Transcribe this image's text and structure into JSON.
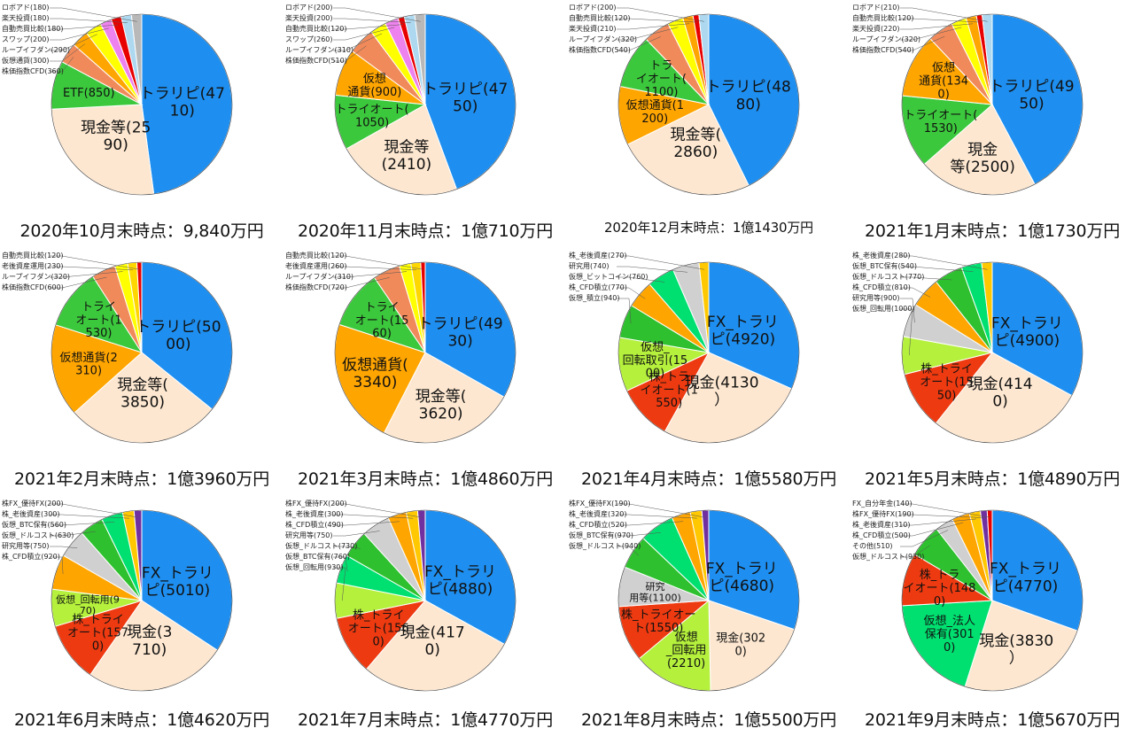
{
  "chart_data": [
    {
      "type": "pie",
      "title": "2020年10月末時点：9,840万円",
      "slices": [
        {
          "name": "トラリピ",
          "value": 4710,
          "color": "#1e8ff0",
          "label_lines": [
            "トラリピ(47",
            "10)"
          ]
        },
        {
          "name": "現金等",
          "value": 2590,
          "color": "#fde7d0",
          "label_lines": [
            "現金等(25",
            "90)"
          ]
        },
        {
          "name": "ETF",
          "value": 850,
          "color": "#3cc83c",
          "label_lines": [
            "ETF(850)"
          ]
        },
        {
          "name": "株価指数CFD",
          "value": 360,
          "color": "#f08a5a",
          "label": "株価指数CFD(360)"
        },
        {
          "name": "仮想通貨",
          "value": 300,
          "color": "#ffa500",
          "label": "仮想通貨(300)"
        },
        {
          "name": "ループイフダン",
          "value": 290,
          "color": "#ffff00",
          "label": "ループイフダン(290)"
        },
        {
          "name": "スワップ",
          "value": 200,
          "color": "#ee82ee",
          "label": "スワップ(200)"
        },
        {
          "name": "自動売買比較",
          "value": 180,
          "color": "#e80000",
          "label": "自動売買比較(180)"
        },
        {
          "name": "楽天投資",
          "value": 180,
          "color": "#add8f0",
          "label": "楽天投資(180)"
        },
        {
          "name": "ロボアド",
          "value": 180,
          "color": "#b8b8b8",
          "label": "ロボアド(180)"
        }
      ]
    },
    {
      "type": "pie",
      "title": "2020年11月末時点：1億710万円",
      "slices": [
        {
          "name": "トラリピ",
          "value": 4750,
          "color": "#1e8ff0",
          "label_lines": [
            "トラリピ(47",
            "50)"
          ]
        },
        {
          "name": "現金等",
          "value": 2410,
          "color": "#fde7d0",
          "label_lines": [
            "現金等",
            "(2410)"
          ]
        },
        {
          "name": "トライオート",
          "value": 1050,
          "color": "#3cc83c",
          "label_lines": [
            "トライオート(",
            "1050)"
          ]
        },
        {
          "name": "仮想通貨",
          "value": 900,
          "color": "#ffa500",
          "label_lines": [
            "仮想",
            "通貨(900)"
          ]
        },
        {
          "name": "株価指数CFD",
          "value": 510,
          "color": "#f08a5a",
          "label": "株価指数CFD(510)"
        },
        {
          "name": "ループイフダン",
          "value": 310,
          "color": "#ffff00",
          "label": "ループイフダン(310)"
        },
        {
          "name": "スワップ",
          "value": 260,
          "color": "#ee82ee",
          "label": "スワップ(260)"
        },
        {
          "name": "自動売買比較",
          "value": 120,
          "color": "#e80000",
          "label": "自動売買比較(120)"
        },
        {
          "name": "楽天投資",
          "value": 200,
          "color": "#add8f0",
          "label": "楽天投資(200)"
        },
        {
          "name": "ロボアド",
          "value": 200,
          "color": "#b8b8b8",
          "label": "ロボアド(200)"
        }
      ]
    },
    {
      "type": "pie",
      "title": "2020年12月末時点：1億1430万円",
      "small_title": true,
      "slices": [
        {
          "name": "トラリピ",
          "value": 4880,
          "color": "#1e8ff0",
          "label_lines": [
            "トラリピ(48",
            "80)"
          ]
        },
        {
          "name": "現金等",
          "value": 2860,
          "color": "#fde7d0",
          "label_lines": [
            "現金等(",
            "2860)"
          ]
        },
        {
          "name": "仮想通貨",
          "value": 1200,
          "color": "#ffa500",
          "label_lines": [
            "仮想通貨(1",
            "200)"
          ]
        },
        {
          "name": "トライオート",
          "value": 1100,
          "color": "#3cc83c",
          "label_lines": [
            "トラ",
            "イオート(",
            "1100)"
          ]
        },
        {
          "name": "株価指数CFD",
          "value": 540,
          "color": "#f08a5a",
          "label": "株価指数CFD(540)"
        },
        {
          "name": "ループイフダン",
          "value": 320,
          "color": "#ffff00",
          "label": "ループイフダン(320)"
        },
        {
          "name": "楽天投資",
          "value": 210,
          "color": "#ffa500",
          "label": "楽天投資(210)"
        },
        {
          "name": "自動売買比較",
          "value": 120,
          "color": "#e80000",
          "label": "自動売買比較(120)"
        },
        {
          "name": "ロボアド",
          "value": 200,
          "color": "#add8f0",
          "label": "ロボアド(200)"
        }
      ]
    },
    {
      "type": "pie",
      "title": "2021年1月末時点：1億1730万円",
      "slices": [
        {
          "name": "トラリピ",
          "value": 4950,
          "color": "#1e8ff0",
          "label_lines": [
            "トラリピ(49",
            "50)"
          ]
        },
        {
          "name": "現金等",
          "value": 2500,
          "color": "#fde7d0",
          "label_lines": [
            "現金",
            "等(2500)"
          ]
        },
        {
          "name": "トライオート",
          "value": 1530,
          "color": "#3cc83c",
          "label_lines": [
            "トライオート(",
            "1530)"
          ]
        },
        {
          "name": "仮想通貨",
          "value": 1340,
          "color": "#ffa500",
          "label_lines": [
            "仮想",
            "通貨(134",
            "0)"
          ]
        },
        {
          "name": "株価指数CFD",
          "value": 540,
          "color": "#f08a5a",
          "label": "株価指数CFD(540)"
        },
        {
          "name": "ループイフダン",
          "value": 320,
          "color": "#ffff00",
          "label": "ループイフダン(320)"
        },
        {
          "name": "楽天投資",
          "value": 220,
          "color": "#ffa500",
          "label": "楽天投資(220)"
        },
        {
          "name": "自動売買比較",
          "value": 120,
          "color": "#e80000",
          "label": "自動売買比較(120)"
        },
        {
          "name": "ロボアド",
          "value": 210,
          "color": "#add8f0",
          "label": "ロボアド(210)"
        }
      ]
    },
    {
      "type": "pie",
      "title": "2021年2月末時点：1億3960万円",
      "slices": [
        {
          "name": "トラリピ",
          "value": 5000,
          "color": "#1e8ff0",
          "label_lines": [
            "トラリピ(50",
            "00)"
          ]
        },
        {
          "name": "現金等",
          "value": 3850,
          "color": "#fde7d0",
          "label_lines": [
            "現金等(",
            "3850)"
          ]
        },
        {
          "name": "仮想通貨",
          "value": 2310,
          "color": "#ffa500",
          "label_lines": [
            "仮想通貨(2",
            "310)"
          ]
        },
        {
          "name": "トライオート",
          "value": 1530,
          "color": "#3cc83c",
          "label_lines": [
            "トライ",
            "オート(1",
            "530)"
          ]
        },
        {
          "name": "株価指数CFD",
          "value": 600,
          "color": "#f08a5a",
          "label": "株価指数CFD(600)"
        },
        {
          "name": "ループイフダン",
          "value": 320,
          "color": "#ffff00",
          "label": "ループイフダン(320)"
        },
        {
          "name": "老後資産運用",
          "value": 230,
          "color": "#ffd700",
          "label": "老後資産運用(230)"
        },
        {
          "name": "自動売買比較",
          "value": 120,
          "color": "#e80000",
          "label": "自動売買比較(120)"
        }
      ]
    },
    {
      "type": "pie",
      "title": "2021年3月末時点：1億4860万円",
      "slices": [
        {
          "name": "トラリピ",
          "value": 4930,
          "color": "#1e8ff0",
          "label_lines": [
            "トラリピ(49",
            "30)"
          ]
        },
        {
          "name": "現金等",
          "value": 3620,
          "color": "#fde7d0",
          "label_lines": [
            "現金等(",
            "3620)"
          ]
        },
        {
          "name": "仮想通貨",
          "value": 3340,
          "color": "#ffa500",
          "label_lines": [
            "仮想通貨(",
            "3340)"
          ]
        },
        {
          "name": "トライオート",
          "value": 1560,
          "color": "#3cc83c",
          "label_lines": [
            "トライ",
            "オート(15",
            "60)"
          ]
        },
        {
          "name": "株価指数CFD",
          "value": 720,
          "color": "#f08a5a",
          "label": "株価指数CFD(720)"
        },
        {
          "name": "ループイフダン",
          "value": 310,
          "color": "#ffff00",
          "label": "ループイフダン(310)"
        },
        {
          "name": "老後資産運用",
          "value": 260,
          "color": "#ffd700",
          "label": "老後資産運用(260)"
        },
        {
          "name": "自動売買比較",
          "value": 120,
          "color": "#e80000",
          "label": "自動売買比較(120)"
        }
      ]
    },
    {
      "type": "pie",
      "title": "2021年4月末時点：1億5580万円",
      "slices": [
        {
          "name": "FX_トラリピ",
          "value": 4920,
          "color": "#1e8ff0",
          "label_lines": [
            "FX_トラリ",
            "ピ(4920)"
          ]
        },
        {
          "name": "現金",
          "value": 4130,
          "color": "#fde7d0",
          "label_lines": [
            "現金(4130",
            "）"
          ]
        },
        {
          "name": "株_トライオート",
          "value": 1550,
          "color": "#ee3a10",
          "label_lines": [
            "株_トラ",
            "イオート(1",
            "550)"
          ]
        },
        {
          "name": "仮想_回転取引",
          "value": 1500,
          "color": "#b4f03c",
          "label_lines": [
            "仮想_",
            "回転取引(15",
            "00)"
          ]
        },
        {
          "name": "仮想_積立",
          "value": 940,
          "color": "#2ec02e",
          "label": "仮想_積立(940)"
        },
        {
          "name": "株_CFD積立",
          "value": 770,
          "color": "#ffa500",
          "label": "株_CFD積立(770)"
        },
        {
          "name": "仮想_ビットコイン",
          "value": 760,
          "color": "#00e070",
          "label": "仮想_ビットコイン(760)"
        },
        {
          "name": "研究用",
          "value": 740,
          "color": "#d0d0d0",
          "label": "研究用(740)"
        },
        {
          "name": "株_老後資産",
          "value": 270,
          "color": "#ffc800",
          "label": "株_老後資産(270)"
        }
      ]
    },
    {
      "type": "pie",
      "title": "2021年5月末時点：1億4890万円",
      "slices": [
        {
          "name": "FX_トラリピ",
          "value": 4900,
          "color": "#1e8ff0",
          "label_lines": [
            "FX_トラリ",
            "ピ(4900)"
          ]
        },
        {
          "name": "現金",
          "value": 4140,
          "color": "#fde7d0",
          "label_lines": [
            "現金(414",
            "0)"
          ]
        },
        {
          "name": "株_トライオート",
          "value": 1550,
          "color": "#ee3a10",
          "label_lines": [
            "株_トライ",
            "オート(15",
            "50)"
          ]
        },
        {
          "name": "仮想_回転用",
          "value": 1000,
          "color": "#b4f03c",
          "label": "仮想_回転用(1000)"
        },
        {
          "name": "研究用等",
          "value": 900,
          "color": "#d0d0d0",
          "label": "研究用等(900)"
        },
        {
          "name": "株_CFD積立",
          "value": 810,
          "color": "#ffa500",
          "label": "株_CFD積立(810)"
        },
        {
          "name": "仮想_ドルコスト",
          "value": 770,
          "color": "#2ec02e",
          "label": "仮想_ドルコスト(770)"
        },
        {
          "name": "仮想_BTC保有",
          "value": 540,
          "color": "#00e070",
          "label": "仮想_BTC保有(540)"
        },
        {
          "name": "株_老後資産",
          "value": 280,
          "color": "#ffc800",
          "label": "株_老後資産(280)"
        }
      ]
    },
    {
      "type": "pie",
      "title": "2021年6月末時点：1億4620万円",
      "slices": [
        {
          "name": "FX_トラリピ",
          "value": 5010,
          "color": "#1e8ff0",
          "label_lines": [
            "FX_トラリ",
            "ピ(5010)"
          ]
        },
        {
          "name": "現金",
          "value": 3710,
          "color": "#fde7d0",
          "label_lines": [
            "現金(3",
            "710)"
          ]
        },
        {
          "name": "株_トライオート",
          "value": 1570,
          "color": "#ee3a10",
          "label_lines": [
            "株_トライ",
            "オート(157",
            "0)"
          ]
        },
        {
          "name": "仮想_回転用",
          "value": 970,
          "color": "#b4f03c",
          "label_lines": [
            "仮想_回転用(9",
            "70)"
          ]
        },
        {
          "name": "株_CFD積立",
          "value": 920,
          "color": "#ffa500",
          "label": "株_CFD積立(920)"
        },
        {
          "name": "研究用等",
          "value": 750,
          "color": "#d0d0d0",
          "label": "研究用等(750)"
        },
        {
          "name": "仮想_ドルコスト",
          "value": 630,
          "color": "#2ec02e",
          "label": "仮想_ドルコスト(630)"
        },
        {
          "name": "仮想_BTC保有",
          "value": 560,
          "color": "#00e070",
          "label": "仮想_BTC保有(560)"
        },
        {
          "name": "株_老後資産",
          "value": 300,
          "color": "#ffc800",
          "label": "株_老後資産(300)"
        },
        {
          "name": "株FX_優待FX",
          "value": 200,
          "color": "#7030a0",
          "label": "株FX_優待FX(200)"
        }
      ]
    },
    {
      "type": "pie",
      "title": "2021年7月末時点：1億4770万円",
      "slices": [
        {
          "name": "FX_トラリピ",
          "value": 4880,
          "color": "#1e8ff0",
          "label_lines": [
            "FX_トラリ",
            "ピ(4880)"
          ]
        },
        {
          "name": "現金",
          "value": 4170,
          "color": "#fde7d0",
          "label_lines": [
            "現金(417",
            "0)"
          ]
        },
        {
          "name": "株_トライオート",
          "value": 1560,
          "color": "#ee3a10",
          "label_lines": [
            "株_トライ",
            "オート(156",
            "0)"
          ]
        },
        {
          "name": "仮想_回転用",
          "value": 930,
          "color": "#b4f03c",
          "label": "仮想_回転用(930)"
        },
        {
          "name": "仮想_BTC保有",
          "value": 760,
          "color": "#00e070",
          "label": "仮想_BTC保有(760)"
        },
        {
          "name": "仮想_ドルコスト",
          "value": 730,
          "color": "#2ec02e",
          "label": "仮想_ドルコスト(730)"
        },
        {
          "name": "研究用等",
          "value": 750,
          "color": "#d0d0d0",
          "label": "研究用等(750)"
        },
        {
          "name": "株_CFD積立",
          "value": 490,
          "color": "#ffa500",
          "label": "株_CFD積立(490)"
        },
        {
          "name": "株_老後資産",
          "value": 300,
          "color": "#ffc800",
          "label": "株_老後資産(300)"
        },
        {
          "name": "株FX_優待FX",
          "value": 200,
          "color": "#7030a0",
          "label": "株FX_優待FX(200)"
        }
      ]
    },
    {
      "type": "pie",
      "title": "2021年8月末時点：1億5500万円",
      "slices": [
        {
          "name": "FX_トラリピ",
          "value": 4680,
          "color": "#1e8ff0",
          "label_lines": [
            "FX_トラリ",
            "ピ(4680)"
          ]
        },
        {
          "name": "現金",
          "value": 3020,
          "color": "#fde7d0",
          "label_lines": [
            "現金(302",
            "0)"
          ]
        },
        {
          "name": "仮想_回転用",
          "value": 2210,
          "color": "#b4f03c",
          "label_lines": [
            "仮想",
            "_回転用",
            "(2210)"
          ]
        },
        {
          "name": "株_トライオート",
          "value": 1550,
          "color": "#ee3a10",
          "label_lines": [
            "株_トライオー",
            "ト(1550)"
          ]
        },
        {
          "name": "研究用等",
          "value": 1100,
          "color": "#d0d0d0",
          "label_lines": [
            "研究",
            "用等(1100)"
          ]
        },
        {
          "name": "仮想_ドルコスト",
          "value": 940,
          "color": "#2ec02e",
          "label": "仮想_ドルコスト(940)"
        },
        {
          "name": "仮想_BTC保有",
          "value": 970,
          "color": "#00e070",
          "label": "仮想_BTC保有(970)"
        },
        {
          "name": "株_CFD積立",
          "value": 520,
          "color": "#ffa500",
          "label": "株_CFD積立(520)"
        },
        {
          "name": "株_老後資産",
          "value": 320,
          "color": "#ffc800",
          "label": "株_老後資産(320)"
        },
        {
          "name": "株FX_優待FX",
          "value": 190,
          "color": "#7030a0",
          "label": "株FX_優待FX(190)"
        }
      ]
    },
    {
      "type": "pie",
      "title": "2021年9月末時点：1億5670万円",
      "slices": [
        {
          "name": "FX_トラリピ",
          "value": 4770,
          "color": "#1e8ff0",
          "label_lines": [
            "FX_トラリ",
            "ピ(4770)"
          ]
        },
        {
          "name": "現金",
          "value": 3830,
          "color": "#fde7d0",
          "label_lines": [
            "現金(3830",
            "）"
          ]
        },
        {
          "name": "仮想_法人保有",
          "value": 3010,
          "color": "#00e070",
          "label_lines": [
            "仮想_法人",
            "保有(301",
            "0)"
          ]
        },
        {
          "name": "株_トライオート",
          "value": 1480,
          "color": "#ee3a10",
          "label_lines": [
            "株_トラ",
            "イオート(148",
            "0)"
          ]
        },
        {
          "name": "仮想_ドルコスト",
          "value": 930,
          "color": "#2ec02e",
          "label": "仮想_ドルコスト(930)"
        },
        {
          "name": "その他",
          "value": 510,
          "color": "#d0d0d0",
          "label": "その他(510)"
        },
        {
          "name": "株_CFD積立",
          "value": 500,
          "color": "#ffa500",
          "label": "株_CFD積立(500)"
        },
        {
          "name": "株_老後資産",
          "value": 310,
          "color": "#ffc800",
          "label": "株_老後資産(310)"
        },
        {
          "name": "株FX_優待FX",
          "value": 190,
          "color": "#7030a0",
          "label": "株FX_優待FX(190)"
        },
        {
          "name": "FX_自分年金",
          "value": 140,
          "color": "#e80000",
          "label": "FX_自分年金(140)"
        }
      ]
    }
  ]
}
